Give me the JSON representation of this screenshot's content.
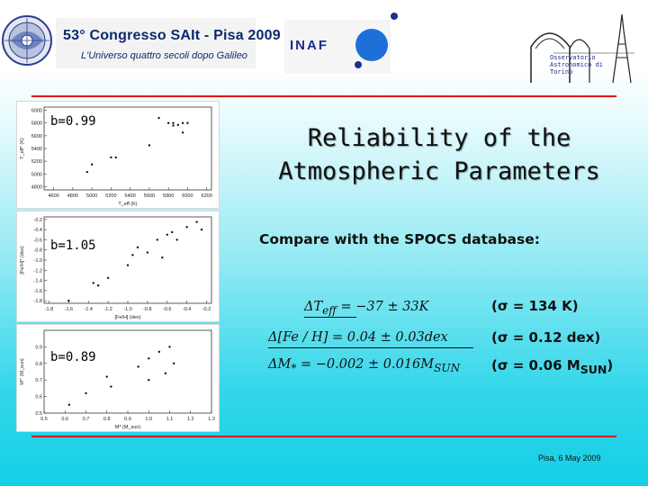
{
  "header": {
    "conference_title": "53° Congresso SAIt - Pisa 2009",
    "conference_subtitle": "L'Universo quattro secoli dopo Galileo",
    "inaf_logo_text": "INAF",
    "observatory_text": [
      "Osservatorio",
      "Astronomico di",
      "Torino"
    ]
  },
  "slide": {
    "title_line1": "Reliability of the",
    "title_line2": "Atmospheric Parameters",
    "subtitle": "Compare with the SPOCS database:",
    "footer": "Pisa, 6 May 2009"
  },
  "panels": [
    {
      "b_label": "b=0.99",
      "xlabel": "T_eff (K)",
      "ylabel": "T_eff* (K)",
      "xticks": [
        "4600",
        "4800",
        "5000",
        "5200",
        "5400",
        "5600",
        "5800",
        "6000",
        "6200"
      ],
      "yticks": [
        "6000",
        "5800",
        "5600",
        "5400",
        "5200",
        "5000",
        "4800"
      ],
      "xlim": [
        4500,
        6250
      ],
      "ylim": [
        4750,
        6050
      ],
      "points": [
        [
          5000,
          5150
        ],
        [
          5200,
          5260
        ],
        [
          5250,
          5260
        ],
        [
          5600,
          5450
        ],
        [
          5700,
          5880
        ],
        [
          5850,
          5760
        ],
        [
          5900,
          5770
        ],
        [
          5950,
          5650
        ],
        [
          5800,
          5800
        ],
        [
          5850,
          5800
        ],
        [
          5950,
          5800
        ],
        [
          6000,
          5800
        ],
        [
          4950,
          5030
        ]
      ]
    },
    {
      "b_label": "b=1.05",
      "xlabel": "[Fe/H] (dex)",
      "ylabel": "[Fe/H]* (dex)",
      "xticks": [
        "-1.8",
        "-1.6",
        "-1.4",
        "-1.2",
        "-1.0",
        "-0.8",
        "-0.6",
        "-0.4",
        "-0.2"
      ],
      "yticks": [
        "-0.2",
        "-0.4",
        "-0.6",
        "-0.8",
        "-1.0",
        "-1.2",
        "-1.4",
        "-1.6",
        "-1.8"
      ],
      "xlim": [
        -1.85,
        -0.15
      ],
      "ylim": [
        -1.85,
        -0.15
      ],
      "points": [
        [
          -1.6,
          -1.8
        ],
        [
          -1.35,
          -1.45
        ],
        [
          -1.3,
          -1.5
        ],
        [
          -1.2,
          -1.35
        ],
        [
          -1.0,
          -1.1
        ],
        [
          -0.95,
          -0.9
        ],
        [
          -0.8,
          -0.85
        ],
        [
          -0.7,
          -0.6
        ],
        [
          -0.6,
          -0.5
        ],
        [
          -0.55,
          -0.45
        ],
        [
          -0.5,
          -0.6
        ],
        [
          -0.4,
          -0.35
        ],
        [
          -0.3,
          -0.25
        ],
        [
          -0.25,
          -0.4
        ],
        [
          -0.65,
          -0.95
        ],
        [
          -0.9,
          -0.75
        ]
      ]
    },
    {
      "b_label": "b=0.89",
      "xlabel": "M* (M_sun)",
      "ylabel": "M*' (M_sun)",
      "xticks": [
        "0.5",
        "0.6",
        "0.7",
        "0.8",
        "0.9",
        "1.0",
        "1.1",
        "1.2",
        "1.3"
      ],
      "yticks": [
        "0.9",
        "0.8",
        "0.7",
        "0.6",
        "0.5"
      ],
      "xlim": [
        0.5,
        1.3
      ],
      "ylim": [
        0.5,
        1.0
      ],
      "points": [
        [
          0.62,
          0.55
        ],
        [
          0.7,
          0.62
        ],
        [
          0.8,
          0.72
        ],
        [
          0.82,
          0.66
        ],
        [
          0.95,
          0.78
        ],
        [
          1.0,
          0.83
        ],
        [
          1.05,
          0.87
        ],
        [
          1.08,
          0.74
        ],
        [
          1.1,
          0.9
        ],
        [
          1.12,
          0.8
        ],
        [
          1.0,
          0.7
        ]
      ]
    }
  ],
  "equations": [
    {
      "lhs": "ΔT",
      "lhs_sub": "eff",
      "rhs": " = −37 ± 33K",
      "sigma": "(σ = 134 K)"
    },
    {
      "lhs": "Δ[Fe / H]",
      "lhs_sub": "",
      "rhs": " = 0.04 ± 0.03dex",
      "sigma": "(σ = 0.12 dex)"
    },
    {
      "lhs": "ΔM",
      "lhs_sub": "*",
      "rhs": " = −0.002 ± 0.016M",
      "rhs_sub": "SUN",
      "sigma_pre": "(σ = 0.06 M",
      "sigma_sub": "SUN",
      "sigma_post": ")"
    }
  ],
  "colors": {
    "rule": "#dd1111",
    "inaf_blue": "#1e6fd8",
    "text": "#111111"
  }
}
